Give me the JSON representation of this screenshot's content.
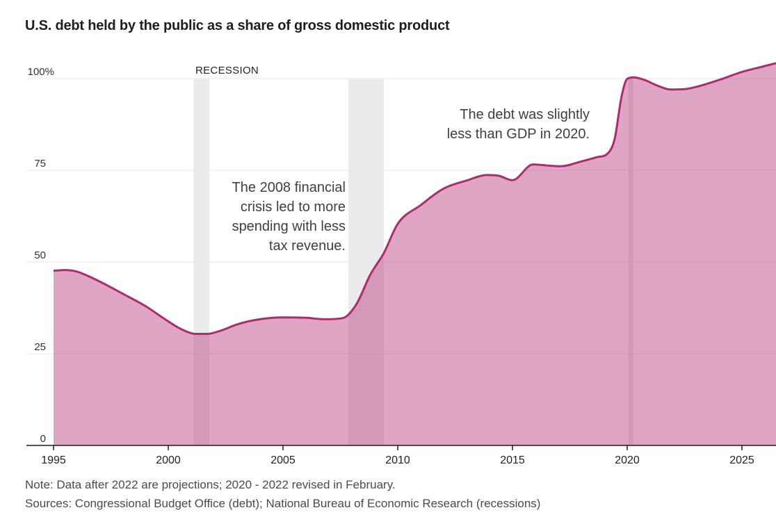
{
  "title": "U.S. debt held by the public as a share of gross domestic product",
  "recession_label": "RECESSION",
  "annotations": {
    "crisis_2008": "The 2008 financial\ncrisis led to more\nspending with less\ntax revenue.",
    "gdp_2020": "The debt was slightly\nless than GDP in 2020."
  },
  "note": "Note: Data after 2022 are projections; 2020 - 2022 revised in February.",
  "sources": "Sources: Congressional Budget Office (debt); National Bureau of Economic Research (recessions)",
  "chart_data": {
    "type": "area",
    "title": "U.S. debt held by the public as a share of gross domestic product",
    "unit": "percent of GDP",
    "x": [
      1995,
      1995.5,
      1996,
      1997,
      1998,
      1999,
      2000,
      2000.6,
      2001.2,
      2001.7,
      2002.3,
      2003,
      2004,
      2005,
      2006,
      2006.8,
      2007.6,
      2008.2,
      2008.8,
      2009.4,
      2010,
      2011,
      2012,
      2013,
      2013.9,
      2014.4,
      2015,
      2015.9,
      2016.5,
      2017.1,
      2018,
      2018.7,
      2019.1,
      2019.45,
      2019.75,
      2020,
      2020.3,
      2020.8,
      2021.3,
      2021.9,
      2022.5,
      2023,
      2024,
      2025,
      2026,
      2026.5
    ],
    "values": [
      47.6,
      47.8,
      47.4,
      44.7,
      41.4,
      38.0,
      33.8,
      31.6,
      30.4,
      30.4,
      31.3,
      33.0,
      34.4,
      34.9,
      34.8,
      34.4,
      34.7,
      38.5,
      46.5,
      52.5,
      60.4,
      65.5,
      70.0,
      72.2,
      73.7,
      73.5,
      72.3,
      76.6,
      76.3,
      76.1,
      77.4,
      78.6,
      79.3,
      83.5,
      95.0,
      99.9,
      100.3,
      99.5,
      98.1,
      97.0,
      97.1,
      97.7,
      99.6,
      101.8,
      103.4,
      104.2
    ],
    "xticks": [
      1995,
      2000,
      2005,
      2010,
      2015,
      2020,
      2025
    ],
    "yticks": [
      0,
      25,
      50,
      75,
      100
    ],
    "ytick_labels": [
      "0",
      "25",
      "50",
      "75",
      "100%"
    ],
    "xlim": [
      1995,
      2026.5
    ],
    "ylim": [
      0,
      106
    ],
    "grid": "horizontal",
    "legend": "none",
    "recessions": [
      {
        "start": 2001.1,
        "end": 2001.8
      },
      {
        "start": 2007.85,
        "end": 2009.4
      },
      {
        "start": 2020.05,
        "end": 2020.27
      }
    ],
    "colors": {
      "line": "#b02a70",
      "fill": "rgba(176,42,112,0.42)",
      "recession_band": "#ebebeb",
      "gridline": "#e4e4e4",
      "axis": "#1a1a1a"
    }
  }
}
